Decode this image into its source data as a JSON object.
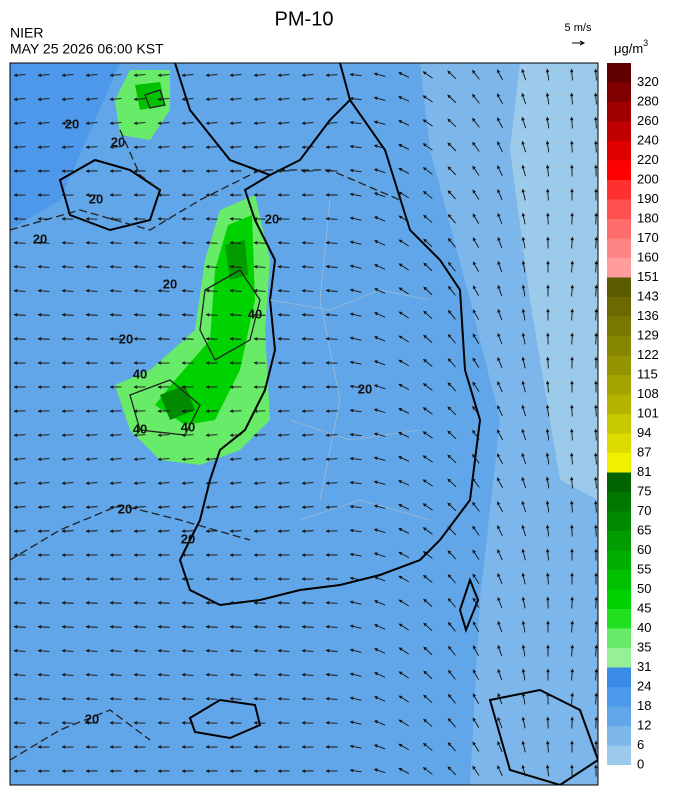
{
  "header": {
    "title": "PM-10",
    "agency": "NIER",
    "timestamp": "MAY 25 2026 06:00 KST",
    "wind_scale": "5 m/s",
    "unit": {
      "base": "μg/m",
      "sup": "3"
    }
  },
  "colorbar": {
    "levels": [
      0,
      6,
      12,
      18,
      24,
      31,
      35,
      40,
      45,
      50,
      55,
      60,
      65,
      70,
      75,
      81,
      87,
      94,
      101,
      108,
      115,
      122,
      129,
      136,
      143,
      151,
      160,
      170,
      180,
      190,
      200,
      220,
      240,
      260,
      280,
      320
    ],
    "colors": [
      "#9ccaea",
      "#7db6ea",
      "#62a6ea",
      "#4d98ea",
      "#3a8ae8",
      "#96f096",
      "#68eb68",
      "#20e020",
      "#00d200",
      "#00c000",
      "#00ae00",
      "#009c00",
      "#008a00",
      "#007800",
      "#006400",
      "#f0f000",
      "#dcdc00",
      "#c8c800",
      "#b4b400",
      "#a4a400",
      "#949400",
      "#868600",
      "#787800",
      "#6a6a00",
      "#5a5a00",
      "#ff9c9c",
      "#ff8484",
      "#ff6c6c",
      "#ff5050",
      "#ff3030",
      "#ff0000",
      "#e00000",
      "#c00000",
      "#a00000",
      "#800000",
      "#600000"
    ]
  },
  "contour_labels": [
    "20",
    "20",
    "20",
    "20",
    "20",
    "20",
    "20",
    "40",
    "40",
    "40",
    "40",
    "20",
    "20",
    "20",
    "20"
  ]
}
